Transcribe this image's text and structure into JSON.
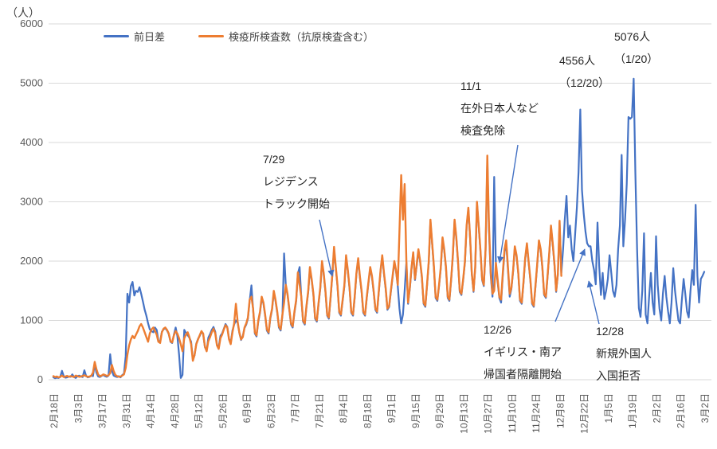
{
  "chart_data": {
    "type": "line",
    "title": "",
    "ylabel": "（人）",
    "ylim": [
      0,
      6000
    ],
    "y_ticks": [
      0,
      1000,
      2000,
      3000,
      4000,
      5000,
      6000
    ],
    "x_tick_interval_days": 14,
    "x_tick_labels": [
      "2月18日",
      "3月3日",
      "3月17日",
      "3月31日",
      "4月14日",
      "4月28日",
      "5月12日",
      "5月26日",
      "6月9日",
      "6月23日",
      "7月7日",
      "7月21日",
      "8月4日",
      "8月18日",
      "9月1日",
      "9月15日",
      "9月29日",
      "10月13日",
      "10月27日",
      "11月10日",
      "11月24日",
      "12月8日",
      "12月22日",
      "1月5日",
      "1月19日",
      "2月2日",
      "2月16日",
      "3月2日"
    ],
    "grid": true,
    "legend_position": "top-left",
    "colors": {
      "blue": "#4472C4",
      "orange": "#ED7D31",
      "gridline": "#D9D9D9"
    },
    "series": [
      {
        "name": "前日差",
        "color": "#4472C4",
        "start_index": 0,
        "values": [
          40,
          25,
          35,
          30,
          45,
          150,
          60,
          35,
          40,
          55,
          50,
          90,
          45,
          30,
          60,
          70,
          55,
          45,
          160,
          65,
          40,
          50,
          70,
          60,
          260,
          120,
          55,
          45,
          65,
          80,
          60,
          50,
          70,
          430,
          150,
          70,
          55,
          45,
          60,
          40,
          80,
          100,
          400,
          1450,
          1300,
          1580,
          1650,
          1420,
          1500,
          1480,
          1560,
          1450,
          1320,
          1180,
          1080,
          950,
          850,
          820,
          800,
          880,
          840,
          660,
          640,
          810,
          850,
          870,
          830,
          770,
          640,
          620,
          760,
          880,
          740,
          420,
          30,
          80,
          840,
          790,
          750,
          710,
          640,
          340,
          410,
          610,
          690,
          740,
          810,
          770,
          550,
          490,
          710,
          770,
          840,
          890,
          810,
          590,
          550,
          740,
          780,
          860,
          940,
          890,
          690,
          620,
          830,
          930,
          1000,
          960,
          790,
          670,
          740,
          870,
          930,
          1030,
          1330,
          1590,
          1180,
          780,
          730,
          980,
          1130,
          1380,
          1280,
          1080,
          830,
          780,
          1030,
          1180,
          1480,
          1330,
          1130,
          880,
          830,
          1080,
          2130,
          1580,
          1430,
          1180,
          930,
          880,
          1130,
          1330,
          1790,
          1900,
          1380,
          980,
          930,
          1230,
          1480,
          1870,
          1680,
          1430,
          1030,
          980,
          1280,
          1530,
          1980,
          1780,
          1480,
          1080,
          1030,
          1380,
          1750,
          2200,
          1880,
          1580,
          1130,
          1080,
          1330,
          1580,
          2070,
          1830,
          1530,
          1130,
          1080,
          1380,
          1780,
          2030,
          1730,
          1480,
          1130,
          1080,
          1380,
          1630,
          1880,
          1730,
          1480,
          1180,
          1130,
          1480,
          1830,
          2080,
          1780,
          1530,
          1180,
          1230,
          1480,
          1730,
          1980,
          1830,
          1580,
          1200,
          950,
          1100,
          1500,
          1980,
          1280,
          1530,
          1880,
          2130,
          1680,
          1930,
          2180,
          1980,
          1730,
          1280,
          1230,
          1580,
          1980,
          2680,
          2280,
          1880,
          1380,
          1330,
          1580,
          1880,
          2380,
          2180,
          1880,
          1380,
          1330,
          1680,
          2080,
          2680,
          2380,
          1980,
          1480,
          1430,
          1680,
          1980,
          2580,
          2880,
          2380,
          1780,
          1480,
          1880,
          2980,
          2580,
          2180,
          1680,
          1580,
          2180,
          3700,
          2500,
          1750,
          1400,
          3420,
          1900,
          1650,
          1380,
          1300,
          1750,
          2150,
          2300,
          1850,
          1400,
          1530,
          1830,
          2230,
          2080,
          1780,
          1330,
          1280,
          1630,
          2030,
          2280,
          1980,
          1680,
          1280,
          1230,
          1580,
          1930,
          2330,
          2180,
          1880,
          1430,
          1380,
          1730,
          2130,
          2580,
          2280,
          1930,
          1480,
          1780,
          2650,
          1800,
          2200,
          2700,
          3100,
          2400,
          2600,
          2200,
          2000,
          2450,
          2900,
          3500,
          4556,
          3200,
          2800,
          2500,
          2300,
          2250,
          2250,
          2000,
          1850,
          1610,
          2650,
          1900,
          1430,
          1800,
          1360,
          1500,
          1700,
          2100,
          1800,
          1500,
          1400,
          1600,
          2200,
          2600,
          3790,
          2250,
          2700,
          3300,
          4430,
          4400,
          4430,
          5076,
          3500,
          2200,
          1210,
          1060,
          1500,
          2470,
          1100,
          950,
          1400,
          1800,
          1300,
          1100,
          2420,
          1600,
          1200,
          1000,
          1450,
          1750,
          1400,
          1150,
          950,
          1300,
          1880,
          1500,
          1250,
          1000,
          950,
          1350,
          1700,
          1450,
          1150,
          1050,
          1500,
          1850,
          1600,
          2950,
          1750,
          1300,
          1700,
          1750,
          1820
        ]
      },
      {
        "name": "検疫所検査数（抗原検査含む）",
        "color": "#ED7D31",
        "start_index": 0,
        "values": [
          60,
          45,
          55,
          40,
          50,
          70,
          45,
          55,
          65,
          50,
          60,
          55,
          45,
          70,
          60,
          50,
          55,
          65,
          75,
          60,
          50,
          55,
          70,
          120,
          300,
          180,
          90,
          60,
          70,
          90,
          80,
          65,
          75,
          110,
          250,
          150,
          80,
          60,
          50,
          55,
          70,
          90,
          200,
          420,
          580,
          680,
          740,
          700,
          760,
          820,
          900,
          940,
          880,
          800,
          720,
          640,
          780,
          850,
          880,
          820,
          760,
          640,
          620,
          800,
          860,
          880,
          840,
          780,
          650,
          630,
          750,
          820,
          780,
          700,
          600,
          480,
          700,
          760,
          800,
          720,
          600,
          320,
          420,
          600,
          680,
          750,
          820,
          780,
          560,
          480,
          650,
          720,
          800,
          860,
          780,
          580,
          520,
          700,
          760,
          850,
          920,
          880,
          680,
          600,
          800,
          950,
          1280,
          980,
          800,
          680,
          720,
          880,
          950,
          1050,
          1350,
          1400,
          1200,
          800,
          750,
          1000,
          1150,
          1400,
          1300,
          1100,
          850,
          800,
          1050,
          1200,
          1500,
          1350,
          1150,
          900,
          850,
          1100,
          1300,
          1600,
          1450,
          1200,
          950,
          900,
          1150,
          1350,
          1810,
          1600,
          1400,
          1000,
          950,
          1250,
          1500,
          1900,
          1700,
          1450,
          1050,
          1000,
          1300,
          1550,
          2000,
          1800,
          1500,
          1100,
          1050,
          1400,
          1770,
          2240,
          1900,
          1600,
          1150,
          1100,
          1350,
          1600,
          2100,
          1850,
          1550,
          1150,
          1100,
          1400,
          1800,
          2050,
          1750,
          1500,
          1150,
          1100,
          1400,
          1650,
          1900,
          1750,
          1500,
          1200,
          1150,
          1500,
          1850,
          2100,
          1800,
          1550,
          1200,
          1250,
          1500,
          1750,
          2000,
          1850,
          1600,
          2500,
          3450,
          2700,
          3300,
          2000,
          1300,
          1550,
          1900,
          2150,
          1700,
          1950,
          2200,
          2000,
          1750,
          1300,
          1250,
          1600,
          2000,
          2700,
          2300,
          1900,
          1400,
          1350,
          1600,
          1900,
          2400,
          2200,
          1900,
          1400,
          1350,
          1700,
          2100,
          2700,
          2400,
          2000,
          1500,
          1450,
          1700,
          2000,
          2600,
          2900,
          2400,
          1800,
          1500,
          1900,
          3000,
          2600,
          2200,
          1700,
          1600,
          2200,
          3780,
          2600,
          1800,
          1450,
          1500,
          1970,
          1700,
          1400,
          1350,
          1800,
          2200,
          2350,
          1900,
          1450,
          1550,
          1850,
          2250,
          2100,
          1800,
          1350,
          1300,
          1650,
          2050,
          2300,
          2000,
          1700,
          1300,
          1250,
          1600,
          1950,
          2350,
          2200,
          1900,
          1450,
          1400,
          1750,
          2150,
          2600,
          2300,
          1950,
          1500,
          1800,
          2680,
          1750
        ]
      }
    ],
    "annotations": [
      {
        "id": "residence-track",
        "lines": [
          "7/29",
          "レジデンス",
          "トラック開始"
        ]
      },
      {
        "id": "test-exemption",
        "lines": [
          "11/1",
          "在外日本人など",
          "検査免除"
        ]
      },
      {
        "id": "peak-4556",
        "lines": [
          "4556人",
          "（12/20）"
        ]
      },
      {
        "id": "peak-5076",
        "lines": [
          "5076人",
          "（1/20）"
        ]
      },
      {
        "id": "uk-sa-quarantine",
        "lines": [
          "12/26",
          "イギリス・南ア",
          "帰国者隔離開始"
        ]
      },
      {
        "id": "entry-ban",
        "lines": [
          "12/28",
          "新規外国人",
          "入国拒否"
        ]
      }
    ]
  }
}
